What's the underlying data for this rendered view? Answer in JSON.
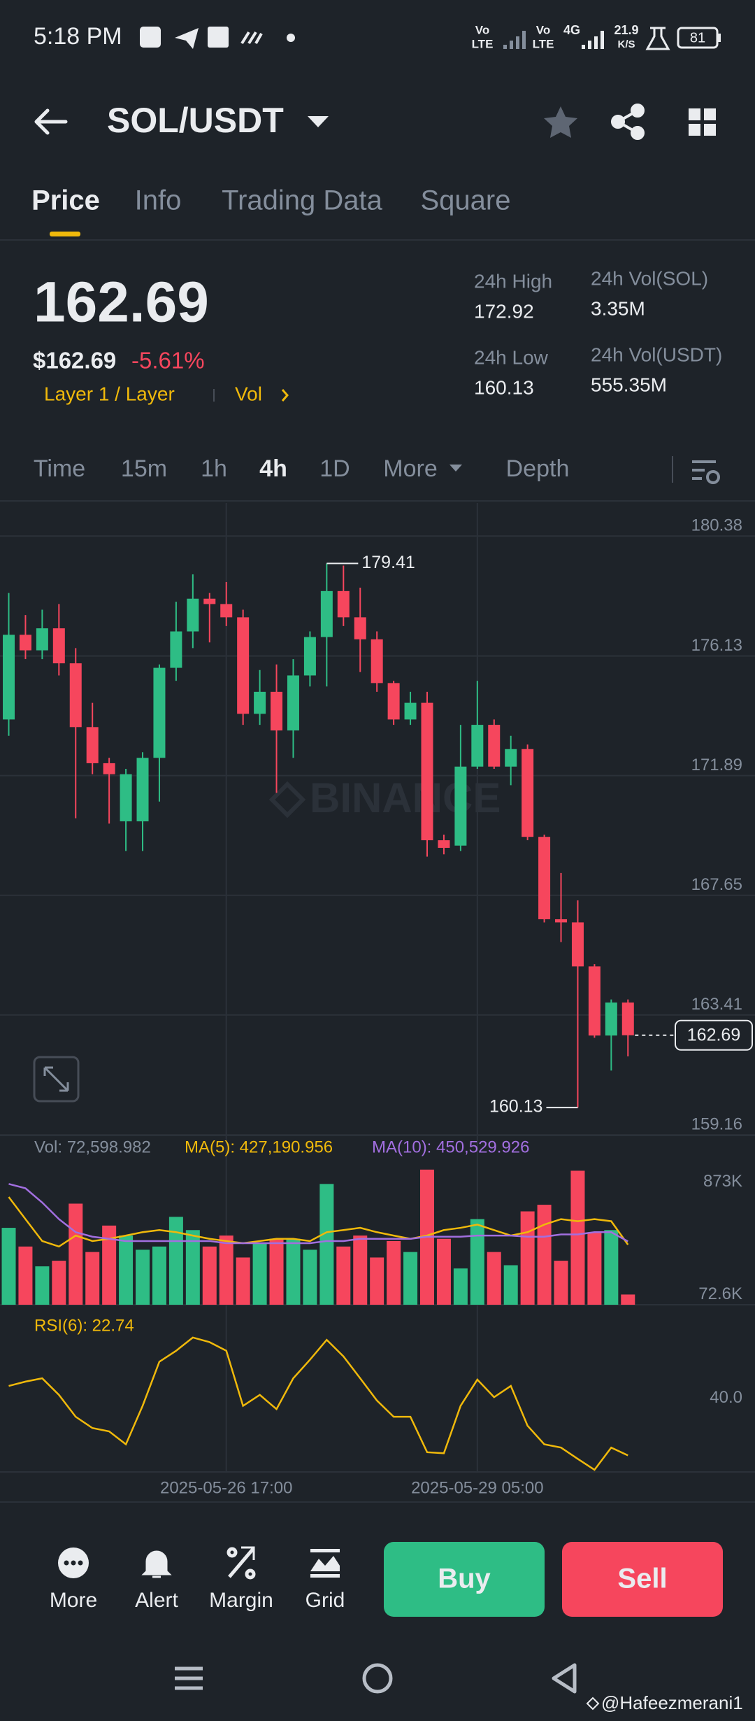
{
  "status_bar": {
    "time": "5:18 PM",
    "volte": [
      "Vo",
      "LTE"
    ],
    "network": "4G",
    "speed": "21.9",
    "speed_unit": "K/S",
    "battery": "81"
  },
  "header": {
    "pair": "SOL/USDT"
  },
  "tabs": [
    "Price",
    "Info",
    "Trading Data",
    "Square"
  ],
  "price": {
    "last": "162.69",
    "usd": "$162.69",
    "change": "-5.61%",
    "tag": "Layer 1 / Layer",
    "vol_tag": "Vol"
  },
  "stats": [
    {
      "label": "24h High",
      "value": "172.92"
    },
    {
      "label": "24h Vol(SOL)",
      "value": "3.35M"
    },
    {
      "label": "24h Low",
      "value": "160.13"
    },
    {
      "label": "24h Vol(USDT)",
      "value": "555.35M"
    }
  ],
  "intervals": [
    "Time",
    "15m",
    "1h",
    "4h",
    "1D",
    "More",
    "Depth"
  ],
  "chart_data": [
    {
      "type": "candlestick",
      "watermark": "BINANCE",
      "up_color": "#2ebd85",
      "down_color": "#f6465d",
      "grid": true,
      "categories": [
        null,
        null,
        null,
        null,
        null,
        null,
        null,
        null,
        null,
        null,
        null,
        null,
        null,
        "2025-05-26 17:00",
        null,
        null,
        null,
        null,
        null,
        null,
        null,
        null,
        null,
        null,
        null,
        null,
        null,
        null,
        "2025-05-29 05:00",
        null,
        null,
        null,
        null,
        null,
        null,
        null,
        null,
        null
      ],
      "open": [
        173.88,
        176.88,
        176.33,
        177.11,
        175.87,
        173.61,
        172.33,
        170.27,
        170.27,
        172.52,
        175.71,
        177.0,
        178.16,
        177.97,
        177.5,
        174.08,
        174.86,
        173.49,
        175.44,
        176.8,
        178.43,
        177.5,
        176.72,
        175.17,
        173.88,
        174.47,
        169.6,
        169.41,
        172.21,
        173.69,
        172.21,
        172.83,
        169.72,
        166.8,
        166.69,
        165.13,
        162.68,
        163.85
      ],
      "high": [
        178.36,
        177.58,
        177.77,
        177.97,
        176.41,
        174.47,
        172.52,
        172.13,
        172.72,
        175.83,
        178.05,
        179.02,
        178.36,
        178.75,
        177.77,
        175.63,
        175.83,
        176.02,
        177.0,
        179.41,
        179.33,
        178.55,
        177.0,
        175.25,
        174.86,
        174.86,
        169.8,
        173.69,
        175.25,
        173.88,
        173.3,
        172.99,
        169.8,
        168.44,
        167.47,
        165.21,
        163.96,
        163.96
      ],
      "low": [
        173.3,
        176.02,
        176.02,
        175.44,
        170.38,
        171.94,
        170.19,
        169.22,
        169.22,
        170.97,
        175.25,
        176.41,
        176.61,
        177.19,
        173.69,
        173.69,
        171.28,
        172.52,
        175.05,
        175.05,
        177.19,
        175.56,
        174.86,
        173.69,
        173.69,
        169.02,
        169.1,
        169.22,
        172.13,
        172.13,
        171.55,
        169.6,
        166.69,
        165.99,
        160.13,
        162.6,
        161.44,
        161.94
      ],
      "close": [
        176.88,
        176.33,
        177.11,
        175.87,
        173.61,
        172.33,
        171.94,
        171.94,
        172.52,
        175.71,
        177.0,
        178.16,
        177.97,
        177.5,
        174.08,
        174.86,
        173.49,
        175.44,
        176.8,
        178.43,
        177.5,
        176.72,
        175.17,
        173.88,
        174.47,
        169.6,
        169.33,
        172.21,
        173.69,
        172.21,
        172.83,
        169.72,
        166.8,
        166.69,
        165.13,
        162.68,
        163.85,
        162.69
      ],
      "ylim": [
        159.14,
        181.55
      ],
      "yticks": [
        180.38,
        176.13,
        171.89,
        167.65,
        163.41,
        159.16
      ]
    },
    {
      "type": "bar",
      "ylim": [
        0,
        1000000
      ],
      "yticks": [
        {
          "value": 873000,
          "label": "873K"
        },
        {
          "value": 72600,
          "label": "72.6K"
        }
      ],
      "series": [
        {
          "label": "Vol: 72,598.982",
          "values": [
            547000,
            414000,
            273000,
            313000,
            719000,
            375000,
            563000,
            492000,
            391000,
            414000,
            625000,
            531000,
            414000,
            492000,
            336000,
            438000,
            469000,
            469000,
            391000,
            859000,
            414000,
            492000,
            336000,
            453000,
            375000,
            961000,
            469000,
            258000,
            609000,
            375000,
            281000,
            664000,
            711000,
            313000,
            953000,
            516000,
            531000,
            72598.982
          ]
        },
        {
          "label": "MA(5): 427,190.956",
          "color": "#f0b90b",
          "values": [
            766000,
            609000,
            453000,
            414000,
            492000,
            453000,
            469000,
            492000,
            516000,
            531000,
            516000,
            492000,
            469000,
            453000,
            438000,
            453000,
            469000,
            469000,
            453000,
            516000,
            531000,
            547000,
            516000,
            492000,
            469000,
            492000,
            531000,
            547000,
            570000,
            531000,
            492000,
            516000,
            570000,
            609000,
            594000,
            609000,
            594000,
            427190.956
          ]
        },
        {
          "label": "MA(10): 450,529.926",
          "color": "#a26fe0",
          "values": [
            859000,
            828000,
            727000,
            609000,
            516000,
            484000,
            469000,
            453000,
            453000,
            453000,
            453000,
            453000,
            453000,
            438000,
            438000,
            438000,
            438000,
            438000,
            438000,
            453000,
            453000,
            469000,
            469000,
            469000,
            469000,
            484000,
            484000,
            484000,
            492000,
            492000,
            492000,
            484000,
            484000,
            500000,
            500000,
            516000,
            516000,
            450529.926
          ]
        }
      ]
    },
    {
      "type": "line",
      "label": "RSI(6): 22.74",
      "color": "#f0b90b",
      "ylim": [
        17.76,
        67.55
      ],
      "yticks": [
        {
          "value": 40,
          "label": "40.0"
        }
      ],
      "values": [
        43.7,
        45.0,
        46.0,
        41.0,
        34.4,
        31.0,
        30.0,
        26.1,
        37.7,
        51.0,
        54.3,
        58.3,
        56.9,
        54.3,
        37.7,
        41.0,
        36.7,
        46.0,
        51.6,
        57.6,
        52.6,
        46.0,
        39.3,
        34.4,
        34.4,
        23.7,
        23.4,
        37.7,
        45.6,
        40.3,
        43.7,
        31.7,
        26.1,
        25.1,
        21.7,
        18.4,
        25.1,
        22.74
      ]
    }
  ],
  "actions": [
    "More",
    "Alert",
    "Margin",
    "Grid"
  ],
  "buy": "Buy",
  "sell": "Sell",
  "watermark": "@Hafeezmerani1"
}
